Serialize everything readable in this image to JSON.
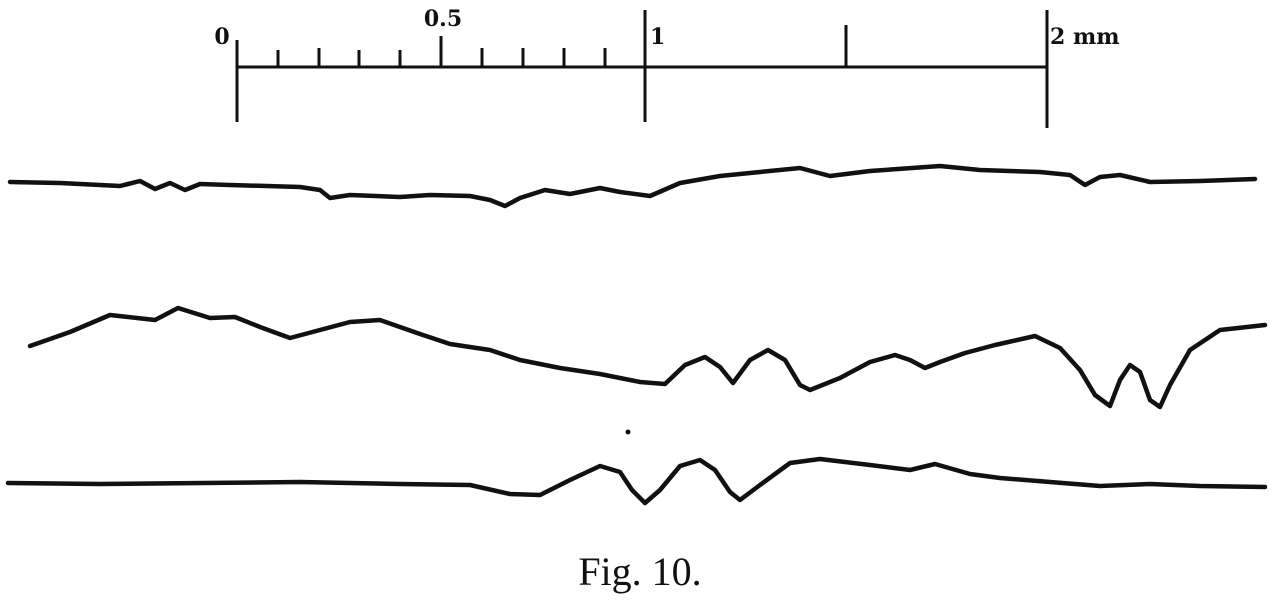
{
  "figure": {
    "scale_labels": [
      "0",
      "0.5",
      "1",
      "2 mm"
    ],
    "caption": "Fig. 10."
  }
}
